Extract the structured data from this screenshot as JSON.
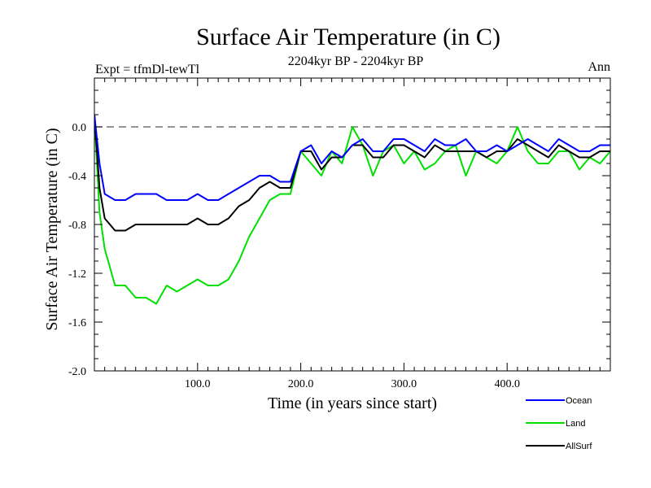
{
  "chart_data": {
    "type": "line",
    "title": "Surface Air Temperature (in C)",
    "subtitle": "2204kyr BP - 2204kyr BP",
    "expt_label": "Expt = tfmDl-tewTl",
    "period_label": "Ann",
    "xlabel": "Time (in years since start)",
    "ylabel": "Surface Air Temperature (in C)",
    "xlim": [
      0,
      500
    ],
    "ylim": [
      -2.0,
      0.4
    ],
    "xticks": [
      100,
      200,
      300,
      400
    ],
    "xtick_labels": [
      "100.0",
      "200.0",
      "300.0",
      "400.0"
    ],
    "yticks": [
      -2.0,
      -1.6,
      -1.2,
      -0.8,
      -0.4,
      0.0
    ],
    "ytick_labels": [
      "-2.0",
      "-1.6",
      "-1.2",
      "-0.8",
      "-0.4",
      "0.0"
    ],
    "reference_line": 0.0,
    "legend": [
      "Ocean",
      "Land",
      "AllSurf"
    ],
    "colors": {
      "Ocean": "#0000ff",
      "Land": "#00e000",
      "AllSurf": "#000000",
      "axis": "#000000",
      "reference": "#555555"
    },
    "series": [
      {
        "name": "Ocean",
        "x": [
          0,
          5,
          10,
          20,
          30,
          40,
          50,
          60,
          70,
          80,
          90,
          100,
          110,
          120,
          130,
          140,
          150,
          160,
          170,
          180,
          190,
          200,
          210,
          220,
          230,
          240,
          250,
          260,
          270,
          280,
          290,
          300,
          310,
          320,
          330,
          340,
          350,
          360,
          370,
          380,
          390,
          400,
          410,
          420,
          430,
          440,
          450,
          460,
          470,
          480,
          490,
          500
        ],
        "values": [
          0.1,
          -0.3,
          -0.55,
          -0.6,
          -0.6,
          -0.55,
          -0.55,
          -0.55,
          -0.6,
          -0.6,
          -0.6,
          -0.55,
          -0.6,
          -0.6,
          -0.55,
          -0.5,
          -0.45,
          -0.4,
          -0.4,
          -0.45,
          -0.45,
          -0.2,
          -0.15,
          -0.3,
          -0.2,
          -0.25,
          -0.15,
          -0.1,
          -0.2,
          -0.2,
          -0.1,
          -0.1,
          -0.15,
          -0.2,
          -0.1,
          -0.15,
          -0.15,
          -0.1,
          -0.2,
          -0.2,
          -0.15,
          -0.2,
          -0.15,
          -0.1,
          -0.15,
          -0.2,
          -0.1,
          -0.15,
          -0.2,
          -0.2,
          -0.15,
          -0.15
        ]
      },
      {
        "name": "Land",
        "x": [
          0,
          5,
          10,
          20,
          30,
          40,
          50,
          60,
          70,
          80,
          90,
          100,
          110,
          120,
          130,
          140,
          150,
          160,
          170,
          180,
          190,
          200,
          210,
          220,
          230,
          240,
          250,
          260,
          270,
          280,
          290,
          300,
          310,
          320,
          330,
          340,
          350,
          360,
          370,
          380,
          390,
          400,
          410,
          420,
          430,
          440,
          450,
          460,
          470,
          480,
          490,
          500
        ],
        "values": [
          0.1,
          -0.7,
          -1.0,
          -1.3,
          -1.3,
          -1.4,
          -1.4,
          -1.45,
          -1.3,
          -1.35,
          -1.3,
          -1.25,
          -1.3,
          -1.3,
          -1.25,
          -1.1,
          -0.9,
          -0.75,
          -0.6,
          -0.55,
          -0.55,
          -0.2,
          -0.3,
          -0.4,
          -0.2,
          -0.3,
          0.0,
          -0.15,
          -0.4,
          -0.2,
          -0.15,
          -0.3,
          -0.2,
          -0.35,
          -0.3,
          -0.2,
          -0.15,
          -0.4,
          -0.2,
          -0.25,
          -0.3,
          -0.2,
          0.0,
          -0.2,
          -0.3,
          -0.3,
          -0.2,
          -0.2,
          -0.35,
          -0.25,
          -0.3,
          -0.2
        ]
      },
      {
        "name": "AllSurf",
        "x": [
          0,
          5,
          10,
          20,
          30,
          40,
          50,
          60,
          70,
          80,
          90,
          100,
          110,
          120,
          130,
          140,
          150,
          160,
          170,
          180,
          190,
          200,
          210,
          220,
          230,
          240,
          250,
          260,
          270,
          280,
          290,
          300,
          310,
          320,
          330,
          340,
          350,
          360,
          370,
          380,
          390,
          400,
          410,
          420,
          430,
          440,
          450,
          460,
          470,
          480,
          490,
          500
        ],
        "values": [
          0.1,
          -0.5,
          -0.75,
          -0.85,
          -0.85,
          -0.8,
          -0.8,
          -0.8,
          -0.8,
          -0.8,
          -0.8,
          -0.75,
          -0.8,
          -0.8,
          -0.75,
          -0.65,
          -0.6,
          -0.5,
          -0.45,
          -0.5,
          -0.5,
          -0.2,
          -0.2,
          -0.35,
          -0.25,
          -0.25,
          -0.15,
          -0.15,
          -0.25,
          -0.25,
          -0.15,
          -0.15,
          -0.2,
          -0.25,
          -0.15,
          -0.2,
          -0.2,
          -0.2,
          -0.2,
          -0.25,
          -0.2,
          -0.2,
          -0.1,
          -0.15,
          -0.2,
          -0.25,
          -0.15,
          -0.2,
          -0.25,
          -0.25,
          -0.2,
          -0.2
        ]
      }
    ]
  }
}
